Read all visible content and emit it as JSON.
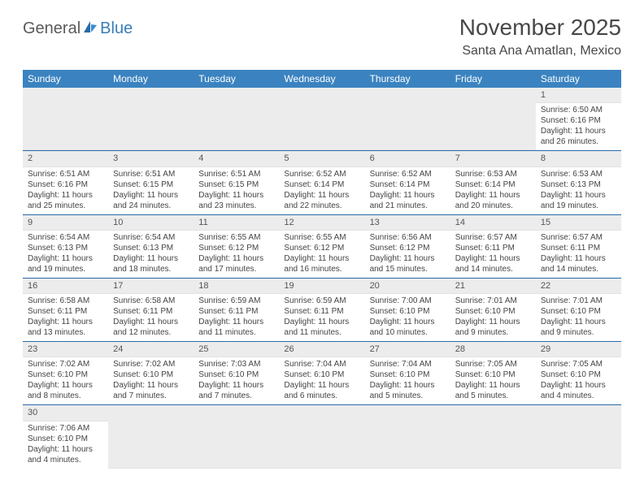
{
  "brand": {
    "general": "General",
    "blue": "Blue"
  },
  "title": "November 2025",
  "location": "Santa Ana Amatlan, Mexico",
  "colors": {
    "header_bg": "#3b83c0",
    "header_text": "#ffffff",
    "row_border": "#2a6aa8",
    "daynum_bg": "#ececec",
    "text": "#444444"
  },
  "weekdays": [
    "Sunday",
    "Monday",
    "Tuesday",
    "Wednesday",
    "Thursday",
    "Friday",
    "Saturday"
  ],
  "first_weekday_index": 6,
  "days": [
    {
      "n": 1,
      "sunrise": "6:50 AM",
      "sunset": "6:16 PM",
      "daylight": "11 hours and 26 minutes."
    },
    {
      "n": 2,
      "sunrise": "6:51 AM",
      "sunset": "6:16 PM",
      "daylight": "11 hours and 25 minutes."
    },
    {
      "n": 3,
      "sunrise": "6:51 AM",
      "sunset": "6:15 PM",
      "daylight": "11 hours and 24 minutes."
    },
    {
      "n": 4,
      "sunrise": "6:51 AM",
      "sunset": "6:15 PM",
      "daylight": "11 hours and 23 minutes."
    },
    {
      "n": 5,
      "sunrise": "6:52 AM",
      "sunset": "6:14 PM",
      "daylight": "11 hours and 22 minutes."
    },
    {
      "n": 6,
      "sunrise": "6:52 AM",
      "sunset": "6:14 PM",
      "daylight": "11 hours and 21 minutes."
    },
    {
      "n": 7,
      "sunrise": "6:53 AM",
      "sunset": "6:14 PM",
      "daylight": "11 hours and 20 minutes."
    },
    {
      "n": 8,
      "sunrise": "6:53 AM",
      "sunset": "6:13 PM",
      "daylight": "11 hours and 19 minutes."
    },
    {
      "n": 9,
      "sunrise": "6:54 AM",
      "sunset": "6:13 PM",
      "daylight": "11 hours and 19 minutes."
    },
    {
      "n": 10,
      "sunrise": "6:54 AM",
      "sunset": "6:13 PM",
      "daylight": "11 hours and 18 minutes."
    },
    {
      "n": 11,
      "sunrise": "6:55 AM",
      "sunset": "6:12 PM",
      "daylight": "11 hours and 17 minutes."
    },
    {
      "n": 12,
      "sunrise": "6:55 AM",
      "sunset": "6:12 PM",
      "daylight": "11 hours and 16 minutes."
    },
    {
      "n": 13,
      "sunrise": "6:56 AM",
      "sunset": "6:12 PM",
      "daylight": "11 hours and 15 minutes."
    },
    {
      "n": 14,
      "sunrise": "6:57 AM",
      "sunset": "6:11 PM",
      "daylight": "11 hours and 14 minutes."
    },
    {
      "n": 15,
      "sunrise": "6:57 AM",
      "sunset": "6:11 PM",
      "daylight": "11 hours and 14 minutes."
    },
    {
      "n": 16,
      "sunrise": "6:58 AM",
      "sunset": "6:11 PM",
      "daylight": "11 hours and 13 minutes."
    },
    {
      "n": 17,
      "sunrise": "6:58 AM",
      "sunset": "6:11 PM",
      "daylight": "11 hours and 12 minutes."
    },
    {
      "n": 18,
      "sunrise": "6:59 AM",
      "sunset": "6:11 PM",
      "daylight": "11 hours and 11 minutes."
    },
    {
      "n": 19,
      "sunrise": "6:59 AM",
      "sunset": "6:11 PM",
      "daylight": "11 hours and 11 minutes."
    },
    {
      "n": 20,
      "sunrise": "7:00 AM",
      "sunset": "6:10 PM",
      "daylight": "11 hours and 10 minutes."
    },
    {
      "n": 21,
      "sunrise": "7:01 AM",
      "sunset": "6:10 PM",
      "daylight": "11 hours and 9 minutes."
    },
    {
      "n": 22,
      "sunrise": "7:01 AM",
      "sunset": "6:10 PM",
      "daylight": "11 hours and 9 minutes."
    },
    {
      "n": 23,
      "sunrise": "7:02 AM",
      "sunset": "6:10 PM",
      "daylight": "11 hours and 8 minutes."
    },
    {
      "n": 24,
      "sunrise": "7:02 AM",
      "sunset": "6:10 PM",
      "daylight": "11 hours and 7 minutes."
    },
    {
      "n": 25,
      "sunrise": "7:03 AM",
      "sunset": "6:10 PM",
      "daylight": "11 hours and 7 minutes."
    },
    {
      "n": 26,
      "sunrise": "7:04 AM",
      "sunset": "6:10 PM",
      "daylight": "11 hours and 6 minutes."
    },
    {
      "n": 27,
      "sunrise": "7:04 AM",
      "sunset": "6:10 PM",
      "daylight": "11 hours and 5 minutes."
    },
    {
      "n": 28,
      "sunrise": "7:05 AM",
      "sunset": "6:10 PM",
      "daylight": "11 hours and 5 minutes."
    },
    {
      "n": 29,
      "sunrise": "7:05 AM",
      "sunset": "6:10 PM",
      "daylight": "11 hours and 4 minutes."
    },
    {
      "n": 30,
      "sunrise": "7:06 AM",
      "sunset": "6:10 PM",
      "daylight": "11 hours and 4 minutes."
    }
  ],
  "labels": {
    "sunrise": "Sunrise:",
    "sunset": "Sunset:",
    "daylight": "Daylight:"
  }
}
